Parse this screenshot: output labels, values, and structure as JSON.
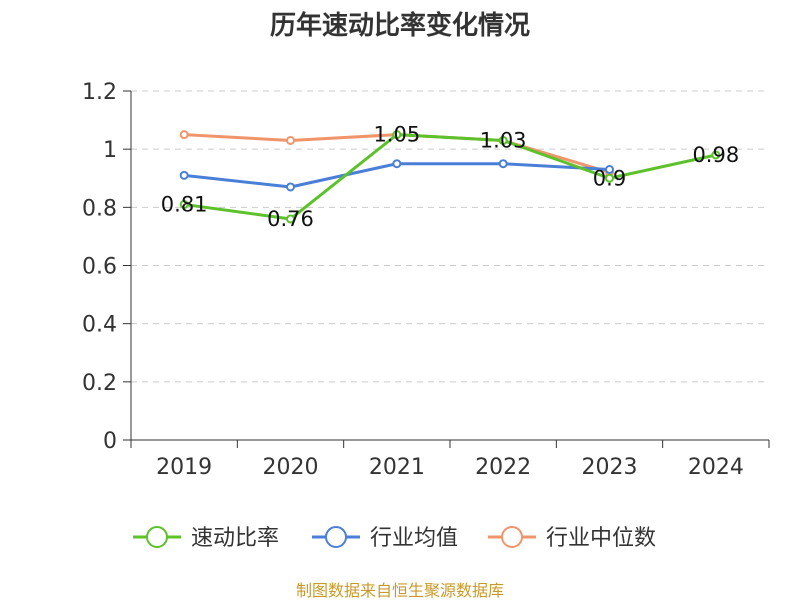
{
  "chart_data": {
    "type": "line",
    "title": "历年速动比率变化情况",
    "categories": [
      "2019",
      "2020",
      "2021",
      "2022",
      "2023",
      "2024"
    ],
    "ylim": [
      0,
      1.2
    ],
    "yticks": [
      "0",
      "0.2",
      "0.4",
      "0.6",
      "0.8",
      "1",
      "1.2"
    ],
    "grid": true,
    "legend_position": "bottom",
    "series": [
      {
        "name": "速动比率",
        "color": "#5cc12a",
        "values": [
          0.81,
          0.76,
          1.05,
          1.03,
          0.9,
          0.98
        ],
        "data_labels": [
          "0.81",
          "0.76",
          "1.05",
          "1.03",
          "0.9",
          "0.98"
        ]
      },
      {
        "name": "行业均值",
        "color": "#4a7fd8",
        "values": [
          0.91,
          0.87,
          0.95,
          0.95,
          0.93,
          null
        ]
      },
      {
        "name": "行业中位数",
        "color": "#f0956a",
        "values": [
          1.05,
          1.03,
          1.05,
          1.03,
          0.92,
          null
        ]
      }
    ],
    "source": "制图数据来自恒生聚源数据库"
  }
}
